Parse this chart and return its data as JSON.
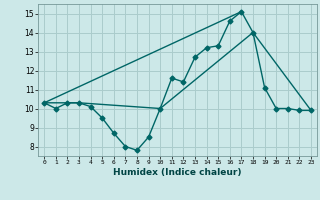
{
  "background_color": "#cce8e8",
  "grid_color": "#aacccc",
  "line_color": "#006666",
  "xlabel": "Humidex (Indice chaleur)",
  "xlim": [
    -0.5,
    23.5
  ],
  "ylim": [
    7.5,
    15.5
  ],
  "yticks": [
    8,
    9,
    10,
    11,
    12,
    13,
    14,
    15
  ],
  "xticks": [
    0,
    1,
    2,
    3,
    4,
    5,
    6,
    7,
    8,
    9,
    10,
    11,
    12,
    13,
    14,
    15,
    16,
    17,
    18,
    19,
    20,
    21,
    22,
    23
  ],
  "series1_x": [
    0,
    1,
    2,
    3,
    4,
    5,
    6,
    7,
    8,
    9,
    10,
    11,
    12,
    13,
    14,
    15,
    16,
    17,
    18,
    19,
    20,
    21,
    22,
    23
  ],
  "series1_y": [
    10.3,
    10.0,
    10.3,
    10.3,
    10.1,
    9.5,
    8.7,
    8.0,
    7.8,
    8.5,
    10.0,
    11.6,
    11.4,
    12.7,
    13.2,
    13.3,
    14.6,
    15.1,
    14.0,
    11.1,
    10.0,
    10.0,
    9.9,
    9.9
  ],
  "series2_x": [
    0,
    2,
    3,
    10,
    18,
    23
  ],
  "series2_y": [
    10.3,
    10.3,
    10.3,
    10.0,
    14.0,
    9.9
  ],
  "series3_x": [
    0,
    17
  ],
  "series3_y": [
    10.3,
    15.1
  ],
  "marker_size": 2.5,
  "line_width": 1.0
}
